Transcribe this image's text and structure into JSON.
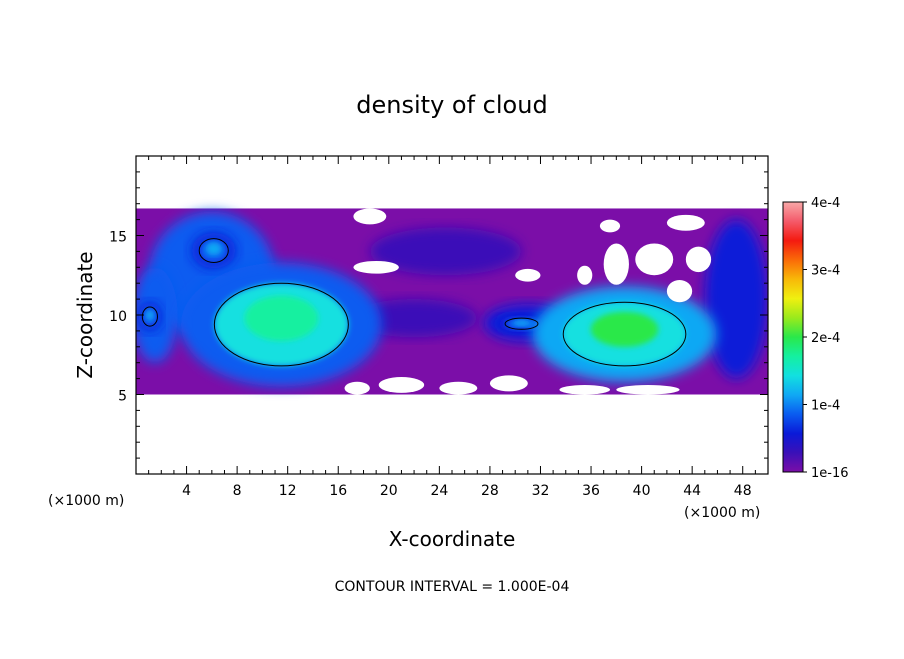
{
  "chart_data": {
    "type": "heatmap",
    "title": "density of cloud",
    "xlabel": "X-coordinate",
    "ylabel": "Z-coordinate",
    "x_unit": "(×1000 m)",
    "y_unit": "(×1000 m)",
    "xlim": [
      0,
      50
    ],
    "ylim": [
      0,
      20
    ],
    "xticks": [
      4,
      8,
      12,
      16,
      20,
      24,
      28,
      32,
      36,
      40,
      44,
      48
    ],
    "yticks": [
      5,
      10,
      15
    ],
    "colorbar": {
      "min": 1e-16,
      "max": 0.0004,
      "tick_values": [
        1e-16,
        0.0001,
        0.0002,
        0.0003,
        0.0004
      ],
      "tick_labels": [
        "1e-16",
        "1e-4",
        "2e-4",
        "3e-4",
        "4e-4"
      ],
      "colors": [
        "#7b0ea8",
        "#3a10b8",
        "#0a1ad8",
        "#0a5cf0",
        "#10a8f4",
        "#12e0e0",
        "#14f0a0",
        "#2ae84a",
        "#9aea1c",
        "#f0f010",
        "#f8b808",
        "#fa6a08",
        "#f41a10",
        "#f45a6a",
        "#f8a8a8"
      ]
    },
    "contour_interval_text": "CONTOUR INTERVAL = 1.000E-04",
    "cloud_extent": {
      "x": [
        0,
        50
      ],
      "z": [
        5,
        16.7
      ]
    },
    "contour_regions": [
      {
        "x": [
          5.0,
          7.3
        ],
        "z": [
          13.3,
          14.8
        ],
        "peak": 0.00012
      },
      {
        "x": [
          0.5,
          1.7
        ],
        "z": [
          9.3,
          10.5
        ],
        "peak": 0.00011
      },
      {
        "x": [
          6.2,
          16.8
        ],
        "z": [
          6.8,
          12.0
        ],
        "peak": 0.00018
      },
      {
        "x": [
          29.2,
          31.8
        ],
        "z": [
          9.1,
          9.8
        ],
        "peak": 0.00011
      },
      {
        "x": [
          33.8,
          43.5
        ],
        "z": [
          6.8,
          10.8
        ],
        "peak": 0.00019
      }
    ]
  }
}
